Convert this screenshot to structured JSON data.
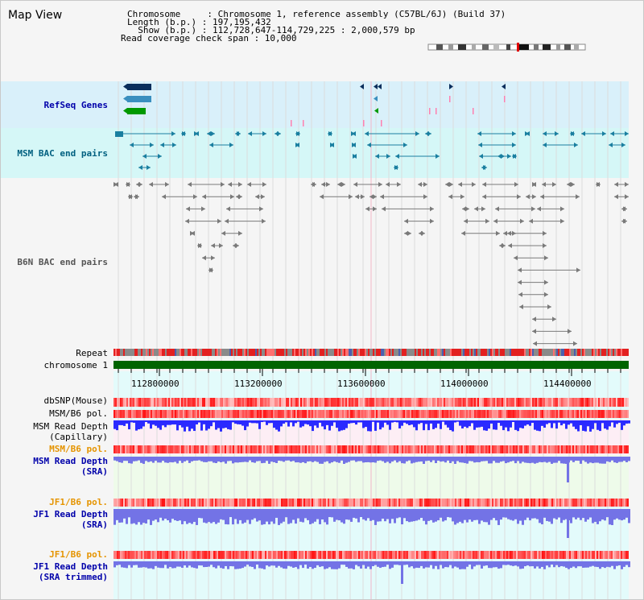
{
  "page": {
    "title": "Map View"
  },
  "header": {
    "line1": "Chromosome     : Chromosome 1, reference assembly (C57BL/6J) (Build 37)",
    "line2": "Length (b.p.) : 197,195,432",
    "line3": "  Show (b.p.) : 112,728,647-114,729,225 : 2,000,579 bp",
    "line4": "Read coverage check span : 10,000"
  },
  "tracks": {
    "refseq": "RefSeq Genes",
    "msm_bac": "MSM BAC end pairs",
    "b6n_bac": "B6N BAC end pairs",
    "repeat": "Repeat",
    "chromosome": "chromosome 1",
    "dbsnp": "dbSNP(Mouse)",
    "msm_b6_pol_1": "MSM/B6 pol.",
    "msm_read_depth_cap_1": "MSM Read Depth",
    "msm_read_depth_cap_2": "(Capillary)",
    "msm_b6_pol_2": "MSM/B6 pol.",
    "msm_read_depth_sra_1": "MSM Read Depth",
    "msm_read_depth_sra_2": "(SRA)",
    "jf1_b6_pol_1": "JF1/B6 pol.",
    "jf1_read_depth_sra_1": "JF1 Read Depth",
    "jf1_read_depth_sra_2": "(SRA)",
    "jf1_b6_pol_2": "JF1/B6 pol.",
    "jf1_read_depth_trim_1": "JF1 Read Depth",
    "jf1_read_depth_trim_2": "(SRA trimmed)"
  },
  "axis": {
    "ticks": [
      "112800000",
      "113200000",
      "113600000",
      "114000000",
      "114400000"
    ]
  },
  "colors": {
    "blue_label": "#0000aa",
    "teal_label": "#006080",
    "orange_label": "#e59400",
    "chromosome_bar": "#006400",
    "gene_dark": "#0a2e5c",
    "gene_mid": "#3a8fbf",
    "gene_green": "#009900",
    "depth_blue": "#2a2aff",
    "depth_light": "#7373e6"
  }
}
